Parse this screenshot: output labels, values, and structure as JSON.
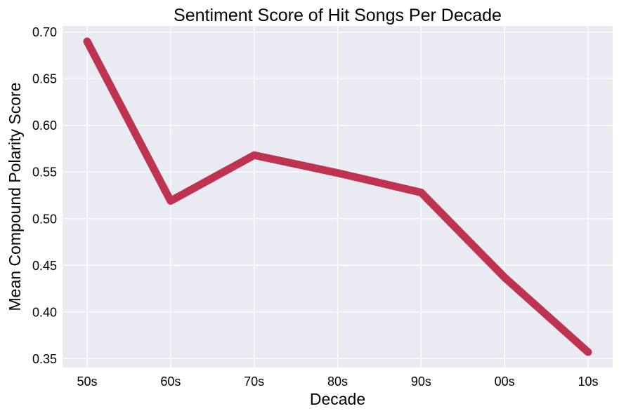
{
  "chart_data": {
    "type": "line",
    "title": "Sentiment Score of Hit Songs Per Decade",
    "xlabel": "Decade",
    "ylabel": "Mean Compound Polarity Score",
    "categories": [
      "50s",
      "60s",
      "70s",
      "80s",
      "90s",
      "00s",
      "10s"
    ],
    "series": [
      {
        "values": [
          0.69,
          0.519,
          0.568,
          0.549,
          0.528,
          0.437,
          0.357
        ],
        "color": "#be3350"
      }
    ],
    "yticks": [
      "0.35",
      "0.40",
      "0.45",
      "0.50",
      "0.55",
      "0.60",
      "0.65",
      "0.70"
    ],
    "ylim": [
      0.3405,
      0.7065
    ],
    "grid": true,
    "legend": "none"
  },
  "style": {
    "plot_background": "#eaeaf2",
    "grid_color": "#ffffff"
  }
}
